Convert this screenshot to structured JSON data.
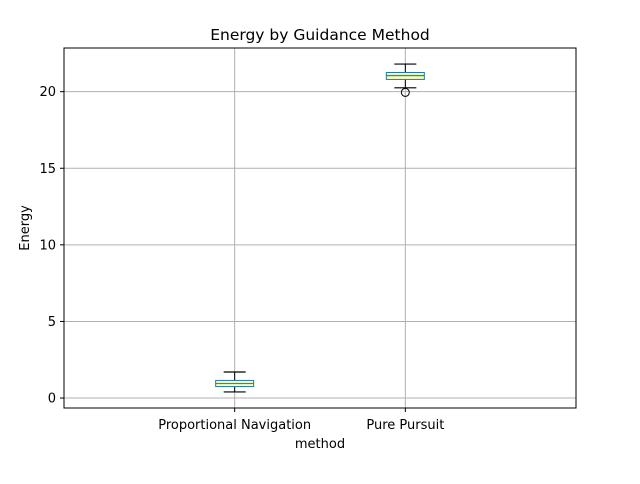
{
  "chart_data": {
    "type": "box",
    "title": "Energy by Guidance Method",
    "xlabel": "method",
    "ylabel": "Energy",
    "categories": [
      "Proportional Navigation",
      "Pure Pursuit"
    ],
    "ylim": [
      -0.65,
      22.85
    ],
    "yticks": [
      0,
      5,
      10,
      15,
      20
    ],
    "grid": true,
    "boxes": [
      {
        "category": "Proportional Navigation",
        "whisker_low": 0.4,
        "q1": 0.75,
        "median": 0.95,
        "q3": 1.15,
        "whisker_high": 1.7,
        "outliers": []
      },
      {
        "category": "Pure Pursuit",
        "whisker_low": 20.25,
        "q1": 20.8,
        "median": 21.05,
        "q3": 21.25,
        "whisker_high": 21.8,
        "outliers": [
          19.95
        ]
      }
    ],
    "colors": {
      "box": "#1f77b4",
      "box_fill": "#ffffcc",
      "median": "#2ca02c",
      "whisker": "#000000",
      "grid": "#b0b0b0",
      "axis": "#000000"
    }
  }
}
